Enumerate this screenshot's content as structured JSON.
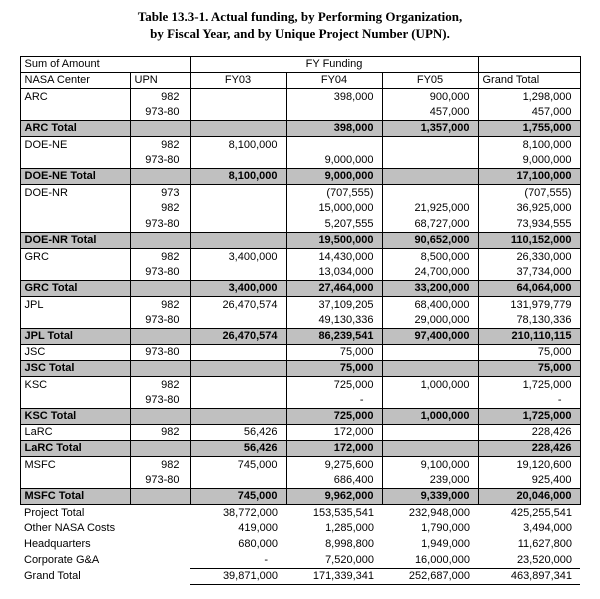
{
  "title": {
    "line1": "Table 13.3-1. Actual funding, by Performing Organization,",
    "line2": "by Fiscal Year, and by Unique Project Number (UPN)."
  },
  "colors": {
    "total_row_bg": "#c0c0c0",
    "border": "#000000"
  },
  "table": {
    "header_row1": {
      "sum_of_amount": "Sum of Amount",
      "fy_funding": "FY Funding"
    },
    "columns": [
      "NASA Center",
      "UPN",
      "FY03",
      "FY04",
      "FY05",
      "Grand Total"
    ],
    "rows": [
      {
        "type": "data",
        "center": "ARC",
        "upn": "982",
        "fy03": "",
        "fy04": "398,000",
        "fy05": "900,000",
        "total": "1,298,000"
      },
      {
        "type": "data",
        "center": "",
        "upn": "973-80",
        "fy03": "",
        "fy04": "",
        "fy05": "457,000",
        "total": "457,000"
      },
      {
        "type": "total",
        "center": "ARC Total",
        "upn": "",
        "fy03": "",
        "fy04": "398,000",
        "fy05": "1,357,000",
        "total": "1,755,000"
      },
      {
        "type": "data",
        "center": "DOE-NE",
        "upn": "982",
        "fy03": "8,100,000",
        "fy04": "",
        "fy05": "",
        "total": "8,100,000"
      },
      {
        "type": "data",
        "center": "",
        "upn": "973-80",
        "fy03": "",
        "fy04": "9,000,000",
        "fy05": "",
        "total": "9,000,000"
      },
      {
        "type": "total",
        "center": "DOE-NE Total",
        "upn": "",
        "fy03": "8,100,000",
        "fy04": "9,000,000",
        "fy05": "",
        "total": "17,100,000"
      },
      {
        "type": "data",
        "center": "DOE-NR",
        "upn": "973",
        "fy03": "",
        "fy04": "(707,555)",
        "fy05": "",
        "total": "(707,555)"
      },
      {
        "type": "data",
        "center": "",
        "upn": "982",
        "fy03": "",
        "fy04": "15,000,000",
        "fy05": "21,925,000",
        "total": "36,925,000"
      },
      {
        "type": "data",
        "center": "",
        "upn": "973-80",
        "fy03": "",
        "fy04": "5,207,555",
        "fy05": "68,727,000",
        "total": "73,934,555"
      },
      {
        "type": "total",
        "center": "DOE-NR Total",
        "upn": "",
        "fy03": "",
        "fy04": "19,500,000",
        "fy05": "90,652,000",
        "total": "110,152,000"
      },
      {
        "type": "data",
        "center": "GRC",
        "upn": "982",
        "fy03": "3,400,000",
        "fy04": "14,430,000",
        "fy05": "8,500,000",
        "total": "26,330,000"
      },
      {
        "type": "data",
        "center": "",
        "upn": "973-80",
        "fy03": "",
        "fy04": "13,034,000",
        "fy05": "24,700,000",
        "total": "37,734,000"
      },
      {
        "type": "total",
        "center": "GRC Total",
        "upn": "",
        "fy03": "3,400,000",
        "fy04": "27,464,000",
        "fy05": "33,200,000",
        "total": "64,064,000"
      },
      {
        "type": "data",
        "center": "JPL",
        "upn": "982",
        "fy03": "26,470,574",
        "fy04": "37,109,205",
        "fy05": "68,400,000",
        "total": "131,979,779"
      },
      {
        "type": "data",
        "center": "",
        "upn": "973-80",
        "fy03": "",
        "fy04": "49,130,336",
        "fy05": "29,000,000",
        "total": "78,130,336"
      },
      {
        "type": "total",
        "center": "JPL Total",
        "upn": "",
        "fy03": "26,470,574",
        "fy04": "86,239,541",
        "fy05": "97,400,000",
        "total": "210,110,115"
      },
      {
        "type": "data",
        "center": "JSC",
        "upn": "973-80",
        "fy03": "",
        "fy04": "75,000",
        "fy05": "",
        "total": "75,000"
      },
      {
        "type": "total",
        "center": "JSC Total",
        "upn": "",
        "fy03": "",
        "fy04": "75,000",
        "fy05": "",
        "total": "75,000"
      },
      {
        "type": "data",
        "center": "KSC",
        "upn": "982",
        "fy03": "",
        "fy04": "725,000",
        "fy05": "1,000,000",
        "total": "1,725,000"
      },
      {
        "type": "data",
        "center": "",
        "upn": "973-80",
        "fy03": "",
        "fy04": "-",
        "fy05": "",
        "total": "-"
      },
      {
        "type": "total",
        "center": "KSC Total",
        "upn": "",
        "fy03": "",
        "fy04": "725,000",
        "fy05": "1,000,000",
        "total": "1,725,000"
      },
      {
        "type": "data",
        "center": "LaRC",
        "upn": "982",
        "fy03": "56,426",
        "fy04": "172,000",
        "fy05": "",
        "total": "228,426"
      },
      {
        "type": "total",
        "center": "LaRC Total",
        "upn": "",
        "fy03": "56,426",
        "fy04": "172,000",
        "fy05": "",
        "total": "228,426"
      },
      {
        "type": "data",
        "center": "MSFC",
        "upn": "982",
        "fy03": "745,000",
        "fy04": "9,275,600",
        "fy05": "9,100,000",
        "total": "19,120,600"
      },
      {
        "type": "data",
        "center": "",
        "upn": "973-80",
        "fy03": "",
        "fy04": "686,400",
        "fy05": "239,000",
        "total": "925,400"
      },
      {
        "type": "total",
        "center": "MSFC Total",
        "upn": "",
        "fy03": "745,000",
        "fy04": "9,962,000",
        "fy05": "9,339,000",
        "total": "20,046,000"
      }
    ],
    "footer_rows": [
      {
        "label": "Project Total",
        "fy03": "38,772,000",
        "fy04": "153,535,541",
        "fy05": "232,948,000",
        "total": "425,255,541"
      },
      {
        "label": "Other NASA Costs",
        "fy03": "419,000",
        "fy04": "1,285,000",
        "fy05": "1,790,000",
        "total": "3,494,000"
      },
      {
        "label": "Headquarters",
        "fy03": "680,000",
        "fy04": "8,998,800",
        "fy05": "1,949,000",
        "total": "11,627,800"
      },
      {
        "label": "Corporate G&A",
        "fy03": "-",
        "fy04": "7,520,000",
        "fy05": "16,000,000",
        "total": "23,520,000"
      },
      {
        "label": "Grand Total",
        "fy03": "39,871,000",
        "fy04": "171,339,341",
        "fy05": "252,687,000",
        "total": "463,897,341"
      }
    ]
  }
}
